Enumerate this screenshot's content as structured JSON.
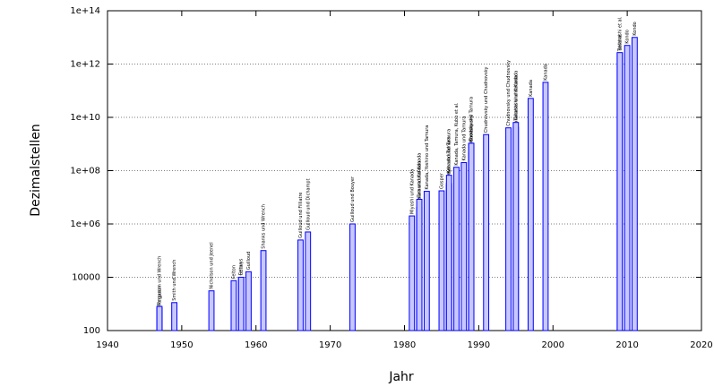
{
  "chart_data": {
    "type": "bar",
    "x_label": "Jahr",
    "y_label": "Dezimalstellen",
    "log_scale": true,
    "grid": true,
    "color": "#0000ff",
    "fill": "#c8c8ff",
    "xlim": [
      1940,
      2020
    ],
    "xticks": [
      1940,
      1950,
      1960,
      1970,
      1980,
      1990,
      2000,
      2010,
      2020
    ],
    "ylim": [
      100,
      100000000000000
    ],
    "yticks": [
      100,
      10000,
      {
        "value": 1000000,
        "label": "1e+06"
      },
      {
        "value": 100000000,
        "label": "1e+08"
      },
      {
        "value": 10000000000,
        "label": "1e+10"
      },
      {
        "value": 1000000000000,
        "label": "1e+12"
      },
      {
        "value": 100000000000000,
        "label": "1e+14"
      }
    ],
    "x": [
      1947,
      1947,
      1949,
      1954,
      1957,
      1958,
      1958,
      1959,
      1961,
      1966,
      1967,
      1973,
      1981,
      1982,
      1982,
      1982,
      1983,
      1985,
      1986,
      1986,
      1986,
      1987,
      1988,
      1989,
      1989,
      1989,
      1991,
      1994,
      1995,
      1995,
      1997,
      1999,
      2009,
      2009,
      2010,
      2011
    ],
    "values": [
      710,
      808,
      1120,
      3092,
      7480,
      10000,
      10021,
      16167,
      100265,
      250000,
      500000,
      1001250,
      2000036,
      2097144,
      4194288,
      8388576,
      16777206,
      17526200,
      29360111,
      33554414,
      67108839,
      134217700,
      201326551,
      480000000,
      1011196691,
      1073741799,
      2260000000,
      4044000000,
      4294967286,
      6442450938,
      51539600000,
      206158430000,
      2576980377524,
      2699999990000,
      5000000000000,
      10000000000000
    ],
    "bar_labels": [
      "Ferguson",
      "Ferguson und Wrench",
      "Smith und Wrench",
      "Nicholson und Jeenel",
      "Felton",
      "Genuys",
      "Felton",
      "Guilloud",
      "Shanks und Wrench",
      "Guilloud und Filliatre",
      "Guilloud und Dichampt",
      "Guilloud und Bouyer",
      "Miyoshi und Kanada",
      "Tamura",
      "Tamura und Kanada",
      "Tamura und Kanada",
      "Kanada, Yoshino und Tamura",
      "Gosper",
      "Bailey",
      "Kanada und Tamura",
      "Kanada und Tamura",
      "Kanada, Tamura, Kubo et al.",
      "Kanada und Tamura",
      "Chudnovsky",
      "Chudnovsky",
      "Kanada und Tamura",
      "Chudnovsky und Chudnovsky",
      "Chudnovsky und Chudnovsky",
      "Takahashi und Kanada",
      "Takahashi und Kanada",
      "Kanada",
      "Kanada",
      "Takahashi et al.",
      "Bellard",
      "Kondo",
      "Kondo"
    ]
  }
}
